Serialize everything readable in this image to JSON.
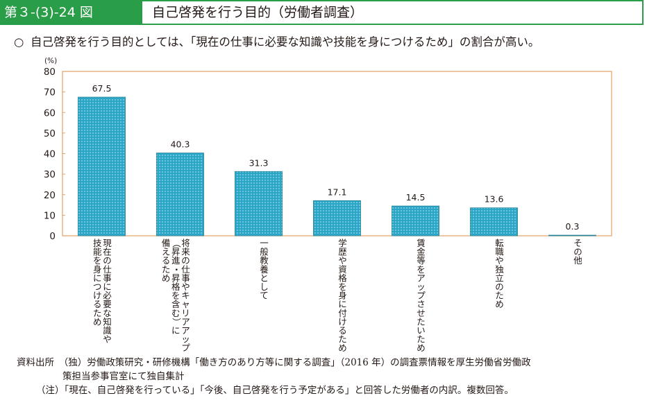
{
  "header": {
    "figure_number": "第３-(3)-24 図",
    "title": "自己啓発を行う目的（労働者調査）"
  },
  "summary": {
    "bullet": "○",
    "text": "自己啓発を行う目的としては、「現在の仕事に必要な知識や技能を身につけるため」の割合が高い。"
  },
  "chart_data": {
    "type": "bar",
    "title": "",
    "xlabel": "",
    "ylabel": "(%)",
    "ylim": [
      0,
      80
    ],
    "yticks": [
      0,
      10,
      20,
      30,
      40,
      50,
      60,
      70,
      80
    ],
    "grid": false,
    "categories": [
      [
        "現在の仕事に必要な知識や",
        "技能を身につけるため"
      ],
      [
        "将来の仕事やキャリアアップ",
        "（昇進・昇格を含む）に",
        "備えるため"
      ],
      [
        "一般教養として"
      ],
      [
        "学歴や資格を身に付けるため"
      ],
      [
        "賃金等をアップさせたいため"
      ],
      [
        "転職や独立のため"
      ],
      [
        "その他"
      ]
    ],
    "values": [
      67.5,
      40.3,
      31.3,
      17.1,
      14.5,
      13.6,
      0.3
    ],
    "data_labels": [
      "67.5",
      "40.3",
      "31.3",
      "17.1",
      "14.5",
      "13.6",
      "0.3"
    ],
    "bar_color": "#2ba6c6",
    "bar_pattern_color": "#9fdcea",
    "frame_color": "#e3a063"
  },
  "notes": {
    "source_line1": "資料出所　（独）労働政策研究・研修機構「働き方のあり方等に関する調査」（2016 年）の調査票情報を厚生労働省労働政",
    "source_line2": "策担当参事官室にて独自集計",
    "note": "（注）「現在、自己啓発を行っている」「今後、自己啓発を行う予定がある」と回答した労働者の内訳。複数回答。"
  }
}
